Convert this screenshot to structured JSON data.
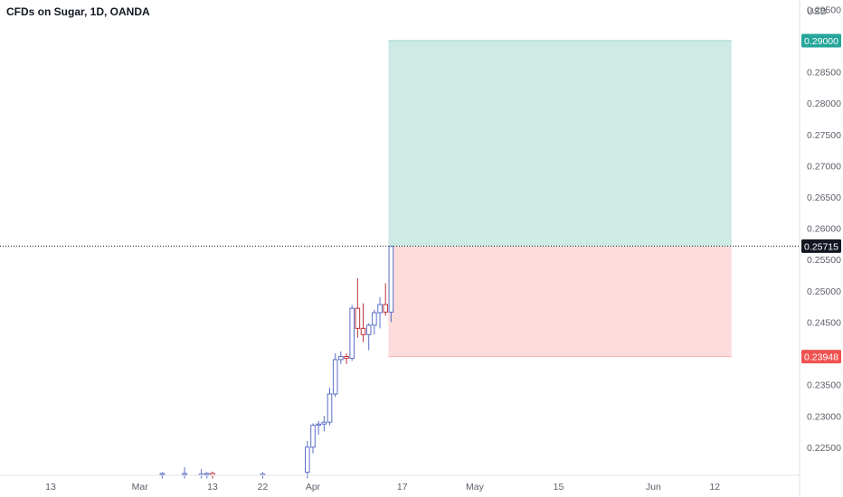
{
  "chart_data": {
    "type": "candlestick",
    "title": "CFDs on Sugar, 1D, OANDA",
    "currency": "USD",
    "ylim": [
      0.2205,
      0.2965
    ],
    "y_ticks": [
      "0.29500",
      "0.28500",
      "0.28000",
      "0.27500",
      "0.27000",
      "0.26500",
      "0.26000",
      "0.25500",
      "0.25000",
      "0.24500",
      "0.23500",
      "0.23000",
      "0.22500"
    ],
    "x_ticks": [
      {
        "day": 13,
        "label": "13"
      },
      {
        "day": 29,
        "label": "Mar"
      },
      {
        "day": 42,
        "label": "13"
      },
      {
        "day": 51,
        "label": "22"
      },
      {
        "day": 60,
        "label": "Apr"
      },
      {
        "day": 76,
        "label": "17"
      },
      {
        "day": 89,
        "label": "May"
      },
      {
        "day": 104,
        "label": "15"
      },
      {
        "day": 121,
        "label": "Jun"
      },
      {
        "day": 132,
        "label": "12"
      }
    ],
    "candles": [
      {
        "day": 33,
        "o": 0.2206,
        "h": 0.221,
        "l": 0.22,
        "c": 0.2208
      },
      {
        "day": 37,
        "o": 0.2206,
        "h": 0.2218,
        "l": 0.22,
        "c": 0.2208
      },
      {
        "day": 40,
        "o": 0.2205,
        "h": 0.2215,
        "l": 0.22,
        "c": 0.2207
      },
      {
        "day": 41,
        "o": 0.2206,
        "h": 0.221,
        "l": 0.22,
        "c": 0.2208
      },
      {
        "day": 42,
        "o": 0.2208,
        "h": 0.2211,
        "l": 0.22,
        "c": 0.2205
      },
      {
        "day": 51,
        "o": 0.2205,
        "h": 0.221,
        "l": 0.22,
        "c": 0.2207
      },
      {
        "day": 59,
        "o": 0.221,
        "h": 0.226,
        "l": 0.22,
        "c": 0.225
      },
      {
        "day": 60,
        "o": 0.225,
        "h": 0.2288,
        "l": 0.224,
        "c": 0.2285
      },
      {
        "day": 61,
        "o": 0.2285,
        "h": 0.2292,
        "l": 0.227,
        "c": 0.2287
      },
      {
        "day": 62,
        "o": 0.2287,
        "h": 0.23,
        "l": 0.2275,
        "c": 0.229
      },
      {
        "day": 63,
        "o": 0.229,
        "h": 0.2345,
        "l": 0.2285,
        "c": 0.2335
      },
      {
        "day": 64,
        "o": 0.2335,
        "h": 0.24,
        "l": 0.233,
        "c": 0.239
      },
      {
        "day": 65,
        "o": 0.239,
        "h": 0.2403,
        "l": 0.2383,
        "c": 0.2395
      },
      {
        "day": 66,
        "o": 0.2395,
        "h": 0.24,
        "l": 0.2383,
        "c": 0.2392
      },
      {
        "day": 67,
        "o": 0.2392,
        "h": 0.2477,
        "l": 0.2388,
        "c": 0.2472
      },
      {
        "day": 68,
        "o": 0.2472,
        "h": 0.252,
        "l": 0.2425,
        "c": 0.244
      },
      {
        "day": 69,
        "o": 0.244,
        "h": 0.248,
        "l": 0.2418,
        "c": 0.243
      },
      {
        "day": 70,
        "o": 0.243,
        "h": 0.2448,
        "l": 0.2405,
        "c": 0.2445
      },
      {
        "day": 71,
        "o": 0.2445,
        "h": 0.247,
        "l": 0.243,
        "c": 0.2465
      },
      {
        "day": 72,
        "o": 0.2465,
        "h": 0.249,
        "l": 0.244,
        "c": 0.2478
      },
      {
        "day": 73,
        "o": 0.2478,
        "h": 0.2512,
        "l": 0.246,
        "c": 0.2466
      },
      {
        "day": 74,
        "o": 0.2466,
        "h": 0.2572,
        "l": 0.245,
        "c": 0.2571
      }
    ],
    "last_price": {
      "value": 0.25715,
      "label": "0.25715",
      "color": "#131722"
    },
    "position": {
      "type": "long",
      "start_day": 74,
      "end_day": 135,
      "entry": 0.25715,
      "target": 0.29,
      "stop": 0.23948,
      "target_label": "0.29000",
      "stop_label": "0.23948",
      "profit_color": "#cdeae5",
      "loss_color": "#fcdcdb",
      "target_tag_color": "#26a69a",
      "stop_tag_color": "#ef5350"
    },
    "colors": {
      "up": "#5b6fc7",
      "down": "#c0313c",
      "up_fill": "#ffffff",
      "down_fill": "#ffffff"
    }
  }
}
